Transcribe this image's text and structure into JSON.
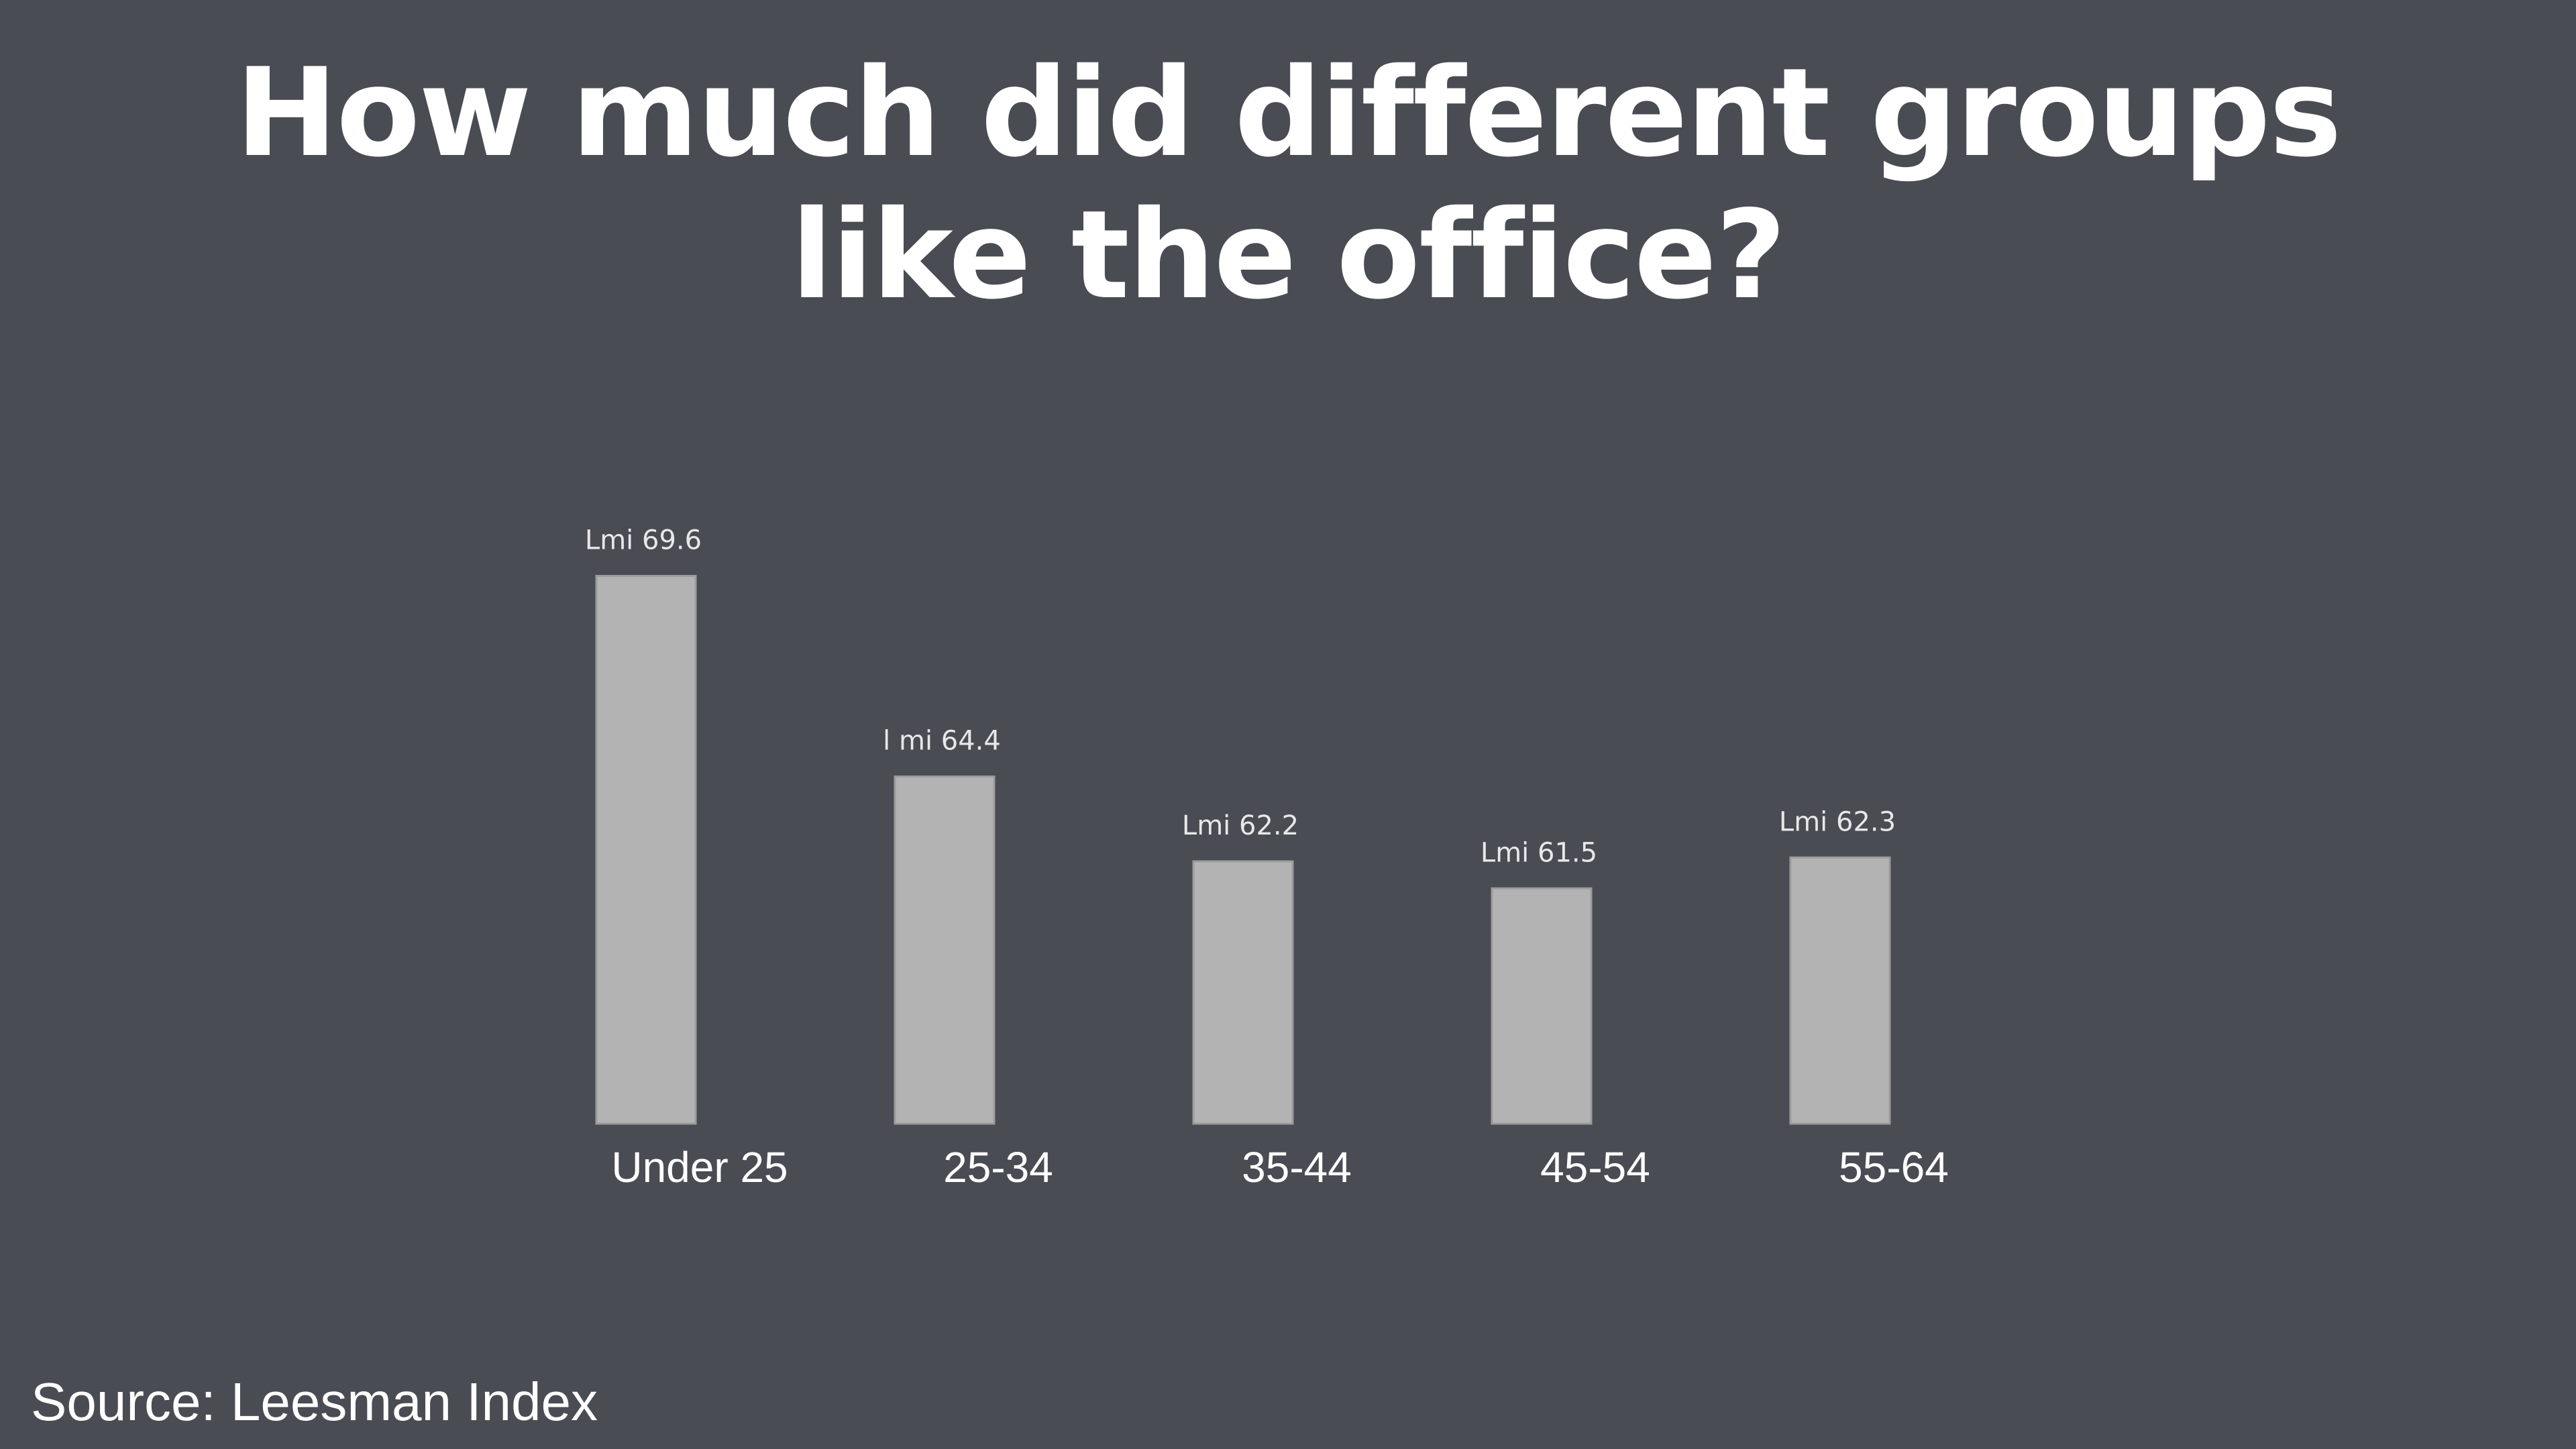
{
  "title": {
    "line1": "How much did different groups",
    "line2": "like the office?"
  },
  "source": "Source: Leesman Index",
  "colors": {
    "background": "#4a4c54",
    "bar": "#b3b3b3",
    "text": "#ffffff",
    "data_label": "#e8e8e8"
  },
  "chart_data": {
    "type": "bar",
    "title": "How much did different groups like the office?",
    "categories": [
      "Under 25",
      "25-34",
      "35-44",
      "45-54",
      "55-64"
    ],
    "values": [
      69.6,
      64.4,
      62.2,
      61.5,
      62.3
    ],
    "data_labels": [
      "Lmi 69.6",
      "l mi 64.4",
      "Lmi 62.2",
      "Lmi 61.5",
      "Lmi 62.3"
    ],
    "xlabel": "",
    "ylabel": "",
    "axes_visible": false,
    "grid": false,
    "legend": "none"
  }
}
